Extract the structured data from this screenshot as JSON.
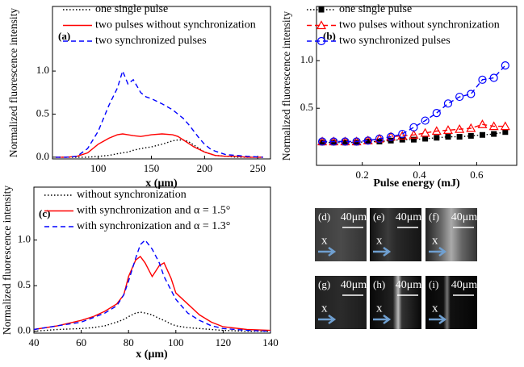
{
  "chart_data": [
    {
      "type": "line",
      "label": "(a)",
      "y_label": "Normalized fluorescence intensity",
      "x_label": "x (μm)",
      "xlim": [
        57,
        262
      ],
      "xticks": [
        100,
        150,
        200,
        250
      ],
      "ylim": [
        -0.02,
        1.75
      ],
      "yticks": [
        {
          "value": 0,
          "label": "0.0"
        },
        {
          "value": 0.5,
          "label": "0.5"
        },
        {
          "value": 1,
          "label": "1.0"
        }
      ],
      "legend": "upper left",
      "x": [
        60,
        70,
        80,
        90,
        100,
        110,
        118,
        123,
        128,
        133,
        140,
        145,
        150,
        160,
        170,
        175,
        180,
        185,
        190,
        195,
        200,
        205,
        210,
        220,
        230,
        240,
        255
      ],
      "series": [
        {
          "name": "one single pulse",
          "color": "#000000",
          "dash": "dotted",
          "values": [
            0,
            0,
            0,
            0,
            0.01,
            0.02,
            0.04,
            0.05,
            0.06,
            0.08,
            0.1,
            0.11,
            0.12,
            0.15,
            0.19,
            0.2,
            0.2,
            0.18,
            0.14,
            0.1,
            0.06,
            0.04,
            0.02,
            0.01,
            0,
            0,
            0
          ]
        },
        {
          "name": "two pulses without synchronization",
          "color": "#ff0000",
          "dash": "solid",
          "values": [
            0,
            0,
            0.01,
            0.05,
            0.15,
            0.22,
            0.26,
            0.27,
            0.26,
            0.25,
            0.24,
            0.25,
            0.26,
            0.27,
            0.26,
            0.24,
            0.2,
            0.16,
            0.12,
            0.09,
            0.06,
            0.04,
            0.02,
            0.01,
            0.01,
            0,
            0
          ]
        },
        {
          "name": "two synchronized pulses",
          "color": "#0000ff",
          "dash": "dashed",
          "values": [
            0,
            0,
            0.01,
            0.1,
            0.3,
            0.6,
            0.8,
            1.0,
            0.85,
            0.9,
            0.75,
            0.7,
            0.68,
            0.62,
            0.55,
            0.5,
            0.45,
            0.38,
            0.3,
            0.22,
            0.15,
            0.1,
            0.07,
            0.03,
            0.02,
            0.01,
            0
          ]
        }
      ]
    },
    {
      "type": "line",
      "label": "(b)",
      "y_label": "Normalized fluorescence intensity",
      "x_label": "Pulse energy (mJ)",
      "xlim": [
        0.04,
        0.74
      ],
      "xticks": [
        0.2,
        0.4,
        0.6
      ],
      "ylim": [
        -0.1,
        1.57
      ],
      "yticks": [
        {
          "value": 0.5,
          "label": "0.5"
        },
        {
          "value": 1,
          "label": "1.0"
        }
      ],
      "legend": "upper left",
      "x": [
        0.06,
        0.1,
        0.14,
        0.18,
        0.22,
        0.26,
        0.3,
        0.34,
        0.38,
        0.42,
        0.46,
        0.5,
        0.54,
        0.58,
        0.62,
        0.66,
        0.7
      ],
      "series": [
        {
          "name": "one single pulse",
          "color": "#000000",
          "dash": "dotted",
          "marker": "square",
          "values": [
            0.14,
            0.14,
            0.14,
            0.14,
            0.15,
            0.15,
            0.16,
            0.17,
            0.17,
            0.18,
            0.19,
            0.2,
            0.2,
            0.21,
            0.22,
            0.23,
            0.25
          ]
        },
        {
          "name": "two pulses without synchronization",
          "color": "#ff0000",
          "dash": "dashed",
          "marker": "triangle",
          "values": [
            0.15,
            0.15,
            0.15,
            0.15,
            0.16,
            0.18,
            0.2,
            0.21,
            0.22,
            0.24,
            0.26,
            0.27,
            0.28,
            0.29,
            0.33,
            0.31,
            0.31
          ]
        },
        {
          "name": "two synchronized pulses",
          "color": "#0000ff",
          "dash": "dashed",
          "marker": "circle",
          "values": [
            0.15,
            0.15,
            0.15,
            0.15,
            0.16,
            0.18,
            0.2,
            0.23,
            0.3,
            0.37,
            0.45,
            0.55,
            0.62,
            0.65,
            0.8,
            0.82,
            0.95
          ]
        }
      ]
    },
    {
      "type": "line",
      "label": "(c)",
      "y_label": "Normalized fluorescence intensity",
      "x_label": "x (μm)",
      "xlim": [
        40,
        140
      ],
      "xticks": [
        40,
        60,
        80,
        100,
        120,
        140
      ],
      "ylim": [
        -0.02,
        1.58
      ],
      "yticks": [
        {
          "value": 0,
          "label": "0.0"
        },
        {
          "value": 0.5,
          "label": "0.5"
        },
        {
          "value": 1,
          "label": "1.0"
        }
      ],
      "legend": "upper left",
      "x": [
        40,
        50,
        60,
        65,
        70,
        75,
        78,
        80,
        83,
        85,
        87,
        90,
        93,
        95,
        98,
        100,
        105,
        110,
        115,
        120,
        130,
        140
      ],
      "series": [
        {
          "name": "without synchronization",
          "color": "#000000",
          "dash": "dotted",
          "values": [
            0,
            0.02,
            0.03,
            0.04,
            0.06,
            0.1,
            0.13,
            0.16,
            0.2,
            0.21,
            0.2,
            0.18,
            0.14,
            0.12,
            0.08,
            0.06,
            0.04,
            0.03,
            0.02,
            0.01,
            0,
            0
          ]
        },
        {
          "name": "with synchronization and α = 1.5°",
          "color": "#ff0000",
          "dash": "solid",
          "values": [
            0.02,
            0.06,
            0.12,
            0.16,
            0.22,
            0.3,
            0.4,
            0.6,
            0.78,
            0.82,
            0.75,
            0.6,
            0.72,
            0.75,
            0.58,
            0.42,
            0.3,
            0.18,
            0.1,
            0.05,
            0.02,
            0.01
          ]
        },
        {
          "name": "with synchronization and α = 1.3°",
          "color": "#0000ff",
          "dash": "dashed",
          "values": [
            0.02,
            0.06,
            0.1,
            0.15,
            0.2,
            0.28,
            0.4,
            0.55,
            0.8,
            0.95,
            1.0,
            0.9,
            0.75,
            0.6,
            0.45,
            0.35,
            0.2,
            0.12,
            0.06,
            0.03,
            0.01,
            0
          ]
        }
      ]
    }
  ],
  "images": [
    {
      "label": "(d)",
      "scale": "40μm",
      "axis": "x"
    },
    {
      "label": "(e)",
      "scale": "40μm",
      "axis": "x"
    },
    {
      "label": "(f)",
      "scale": "40μm",
      "axis": "x"
    },
    {
      "label": "(g)",
      "scale": "40μm",
      "axis": "x"
    },
    {
      "label": "(h)",
      "scale": "40μm",
      "axis": "x"
    },
    {
      "label": "(i)",
      "scale": "40μm",
      "axis": "x"
    }
  ]
}
